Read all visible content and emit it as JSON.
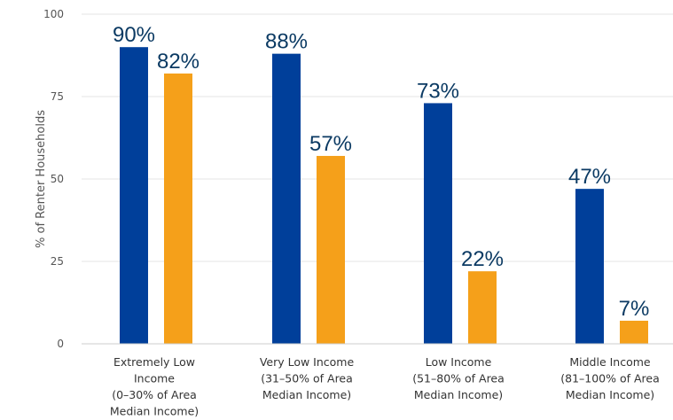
{
  "chart_data": {
    "type": "bar",
    "categories": [
      [
        "Extremely Low",
        "Income",
        "(0–30% of Area",
        "Median Income)"
      ],
      [
        "Very Low Income",
        "(31–50% of Area",
        "Median Income)"
      ],
      [
        "Low Income",
        "(51–80% of Area",
        "Median Income)"
      ],
      [
        "Middle Income",
        "(81–100% of Area",
        "Median Income)"
      ]
    ],
    "series": [
      {
        "values": [
          90,
          88,
          73,
          47
        ],
        "labels": [
          "90%",
          "88%",
          "73%",
          "47%"
        ],
        "color": "#003f9a"
      },
      {
        "values": [
          82,
          57,
          22,
          7
        ],
        "labels": [
          "82%",
          "57%",
          "22%",
          "7%"
        ],
        "color": "#f5a01a"
      }
    ],
    "ylabel": "% of Renter Households",
    "ylim": [
      0,
      100
    ],
    "yticks": [
      "0",
      "25",
      "50",
      "75",
      "100"
    ],
    "grid": true,
    "legend": "none"
  }
}
